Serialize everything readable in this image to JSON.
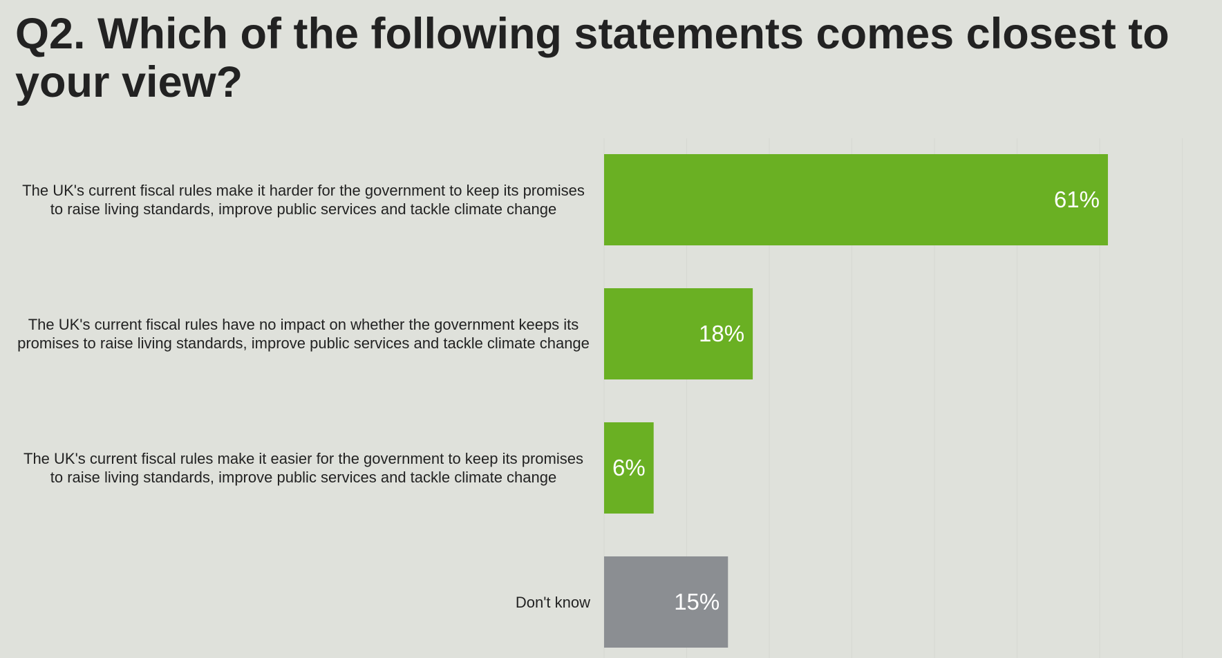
{
  "chart_data": {
    "type": "bar",
    "orientation": "horizontal",
    "title": "Q2. Which of the following statements comes closest to your view?",
    "categories": [
      "The UK's current fiscal rules make it harder for the government to keep its promises to raise living standards, improve public services and tackle climate change",
      "The UK's current fiscal rules have no impact on whether the government keeps its promises to raise living standards, improve public services and tackle climate change",
      "The UK's current fiscal rules make it easier for the government to keep its promises to raise living standards, improve public services and tackle climate change",
      "Don't know"
    ],
    "values": [
      61,
      18,
      6,
      15
    ],
    "data_labels": [
      "61%",
      "18%",
      "6%",
      "15%"
    ],
    "colors": [
      "#6ab023",
      "#6ab023",
      "#6ab023",
      "#8b8e92"
    ],
    "xlim": [
      0,
      75
    ],
    "grid": true,
    "gridline_step": 10
  }
}
